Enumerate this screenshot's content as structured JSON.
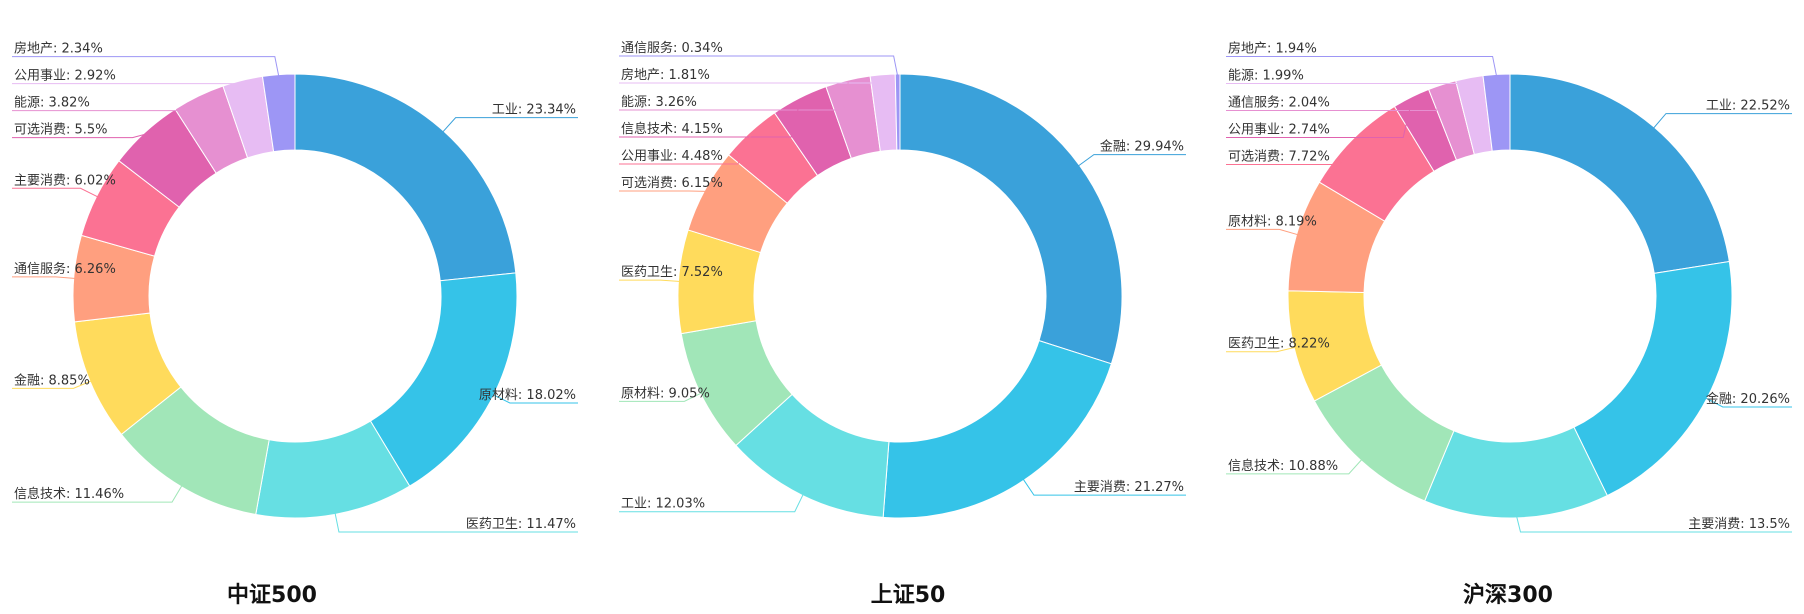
{
  "colors": [
    "#3aa1da",
    "#35c3e8",
    "#66dfe3",
    "#a1e6b8",
    "#ffdb5c",
    "#ff9f7f",
    "#fb7293",
    "#e062ae",
    "#e690d1",
    "#e7bcf3",
    "#9d96f5"
  ],
  "chart_data": [
    {
      "type": "pie",
      "title": "中证500",
      "categories": [
        "工业",
        "原材料",
        "医药卫生",
        "信息技术",
        "金融",
        "通信服务",
        "主要消费",
        "可选消费",
        "能源",
        "公用事业",
        "房地产"
      ],
      "values": [
        23.34,
        18.02,
        11.47,
        11.46,
        8.85,
        6.26,
        6.02,
        5.5,
        3.82,
        2.92,
        2.34
      ],
      "labels": [
        "工业: 23.34%",
        "原材料: 18.02%",
        "医药卫生: 11.47%",
        "信息技术: 11.46%",
        "金融: 8.85%",
        "通信服务: 6.26%",
        "主要消费: 6.02%",
        "可选消费: 5.5%",
        "能源: 3.82%",
        "公用事业: 2.92%",
        "房地产: 2.34%"
      ]
    },
    {
      "type": "pie",
      "title": "上证50",
      "categories": [
        "金融",
        "主要消费",
        "工业",
        "原材料",
        "医药卫生",
        "可选消费",
        "公用事业",
        "信息技术",
        "能源",
        "房地产",
        "通信服务"
      ],
      "values": [
        29.94,
        21.27,
        12.03,
        9.05,
        7.52,
        6.15,
        4.48,
        4.15,
        3.26,
        1.81,
        0.34
      ],
      "labels": [
        "金融: 29.94%",
        "主要消费: 21.27%",
        "工业: 12.03%",
        "原材料: 9.05%",
        "医药卫生: 7.52%",
        "可选消费: 6.15%",
        "公用事业: 4.48%",
        "信息技术: 4.15%",
        "能源: 3.26%",
        "房地产: 1.81%",
        "通信服务: 0.34%"
      ]
    },
    {
      "type": "pie",
      "title": "沪深300",
      "categories": [
        "工业",
        "金融",
        "主要消费",
        "信息技术",
        "医药卫生",
        "原材料",
        "可选消费",
        "公用事业",
        "通信服务",
        "能源",
        "房地产"
      ],
      "values": [
        22.52,
        20.26,
        13.5,
        10.88,
        8.22,
        8.19,
        7.72,
        2.74,
        2.04,
        1.99,
        1.94
      ],
      "labels": [
        "工业: 22.52%",
        "金融: 20.26%",
        "主要消费: 13.5%",
        "信息技术: 10.88%",
        "医药卫生: 8.22%",
        "原材料: 8.19%",
        "可选消费: 7.72%",
        "公用事业: 2.74%",
        "通信服务: 2.04%",
        "能源: 1.99%",
        "房地产: 1.94%"
      ]
    }
  ]
}
